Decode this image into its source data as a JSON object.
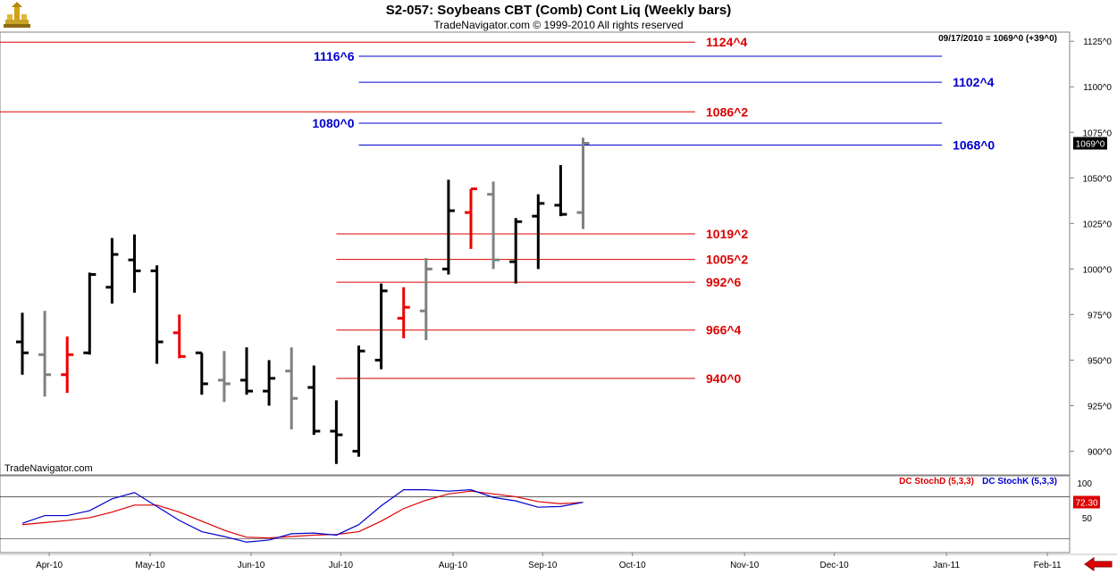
{
  "header": {
    "title": "S2-057:  Soybeans CBT (Comb) Cont Liq  (Weekly bars)",
    "copyright": "TradeNavigator.com © 1999-2010 All rights reserved"
  },
  "colors": {
    "bar_up": "#000000",
    "bar_gray": "#808080",
    "bar_red": "#ee0000",
    "red_level": "#dd0000",
    "blue_level": "#0000cc",
    "stoch_d": "#dd0000",
    "stoch_k": "#0000cc"
  },
  "icons": {
    "logo": "tradenavigator-logo-icon",
    "scroll": "scroll-left-arrow-icon"
  },
  "chart_data": [
    {
      "type": "ohlc",
      "title": "S2-057:  Soybeans CBT (Comb) Cont Liq  (Weekly bars)",
      "info_label": "09/17/2010 = 1069^0 (+39^0)",
      "watermark": "TradeNavigator.com",
      "y_range": [
        887,
        1130
      ],
      "y_ticks": [
        900,
        925,
        950,
        975,
        1000,
        1025,
        1050,
        1075,
        1100,
        1125
      ],
      "y_tick_labels": [
        "900^0",
        "925^0",
        "950^0",
        "975^0",
        "1000^0",
        "1025^0",
        "1050^0",
        "1075^0",
        "1100^0",
        "1125^0"
      ],
      "last_price_label": "1069^0",
      "last_price": 1069,
      "x_axis_labels": [
        {
          "label": "Apr-10",
          "week": 1
        },
        {
          "label": "May-10",
          "week": 5.5
        },
        {
          "label": "Jun-10",
          "week": 10
        },
        {
          "label": "Jul-10",
          "week": 14
        },
        {
          "label": "Aug-10",
          "week": 19
        },
        {
          "label": "Sep-10",
          "week": 23
        },
        {
          "label": "Oct-10",
          "week": 27
        },
        {
          "label": "Nov-10",
          "week": 32
        },
        {
          "label": "Dec-10",
          "week": 36
        },
        {
          "label": "Jan-11",
          "week": 41
        },
        {
          "label": "Feb-11",
          "week": 45.5
        }
      ],
      "bars": [
        {
          "week": 0,
          "o": 960,
          "h": 976,
          "l": 942,
          "c": 954,
          "color": "black"
        },
        {
          "week": 1,
          "o": 953,
          "h": 977,
          "l": 930,
          "c": 942,
          "color": "gray"
        },
        {
          "week": 2,
          "o": 942,
          "h": 963,
          "l": 932,
          "c": 953,
          "color": "red"
        },
        {
          "week": 3,
          "o": 954,
          "h": 998,
          "l": 953,
          "c": 997,
          "color": "black"
        },
        {
          "week": 4,
          "o": 990,
          "h": 1017,
          "l": 981,
          "c": 1008,
          "color": "black"
        },
        {
          "week": 5,
          "o": 1005,
          "h": 1019,
          "l": 987,
          "c": 999,
          "color": "black"
        },
        {
          "week": 6,
          "o": 999,
          "h": 1002,
          "l": 948,
          "c": 960,
          "color": "black"
        },
        {
          "week": 7,
          "o": 965,
          "h": 975,
          "l": 951,
          "c": 952,
          "color": "red"
        },
        {
          "week": 8,
          "o": 954,
          "h": 954,
          "l": 931,
          "c": 937,
          "color": "black"
        },
        {
          "week": 9,
          "o": 939,
          "h": 955,
          "l": 927,
          "c": 937,
          "color": "gray"
        },
        {
          "week": 10,
          "o": 939,
          "h": 957,
          "l": 931,
          "c": 933,
          "color": "black"
        },
        {
          "week": 11,
          "o": 933,
          "h": 950,
          "l": 925,
          "c": 940,
          "color": "black"
        },
        {
          "week": 12,
          "o": 944,
          "h": 957,
          "l": 912,
          "c": 929,
          "color": "gray"
        },
        {
          "week": 13,
          "o": 935,
          "h": 947,
          "l": 909,
          "c": 911,
          "color": "black"
        },
        {
          "week": 14,
          "o": 911,
          "h": 928,
          "l": 893,
          "c": 909,
          "color": "black"
        },
        {
          "week": 15,
          "o": 900,
          "h": 958,
          "l": 897,
          "c": 955,
          "color": "black"
        },
        {
          "week": 16,
          "o": 950,
          "h": 992,
          "l": 945,
          "c": 988,
          "color": "black"
        },
        {
          "week": 17,
          "o": 973,
          "h": 990,
          "l": 962,
          "c": 979,
          "color": "red"
        },
        {
          "week": 18,
          "o": 977,
          "h": 1006,
          "l": 961,
          "c": 1000,
          "color": "gray"
        },
        {
          "week": 19,
          "o": 1000,
          "h": 1049,
          "l": 997,
          "c": 1032,
          "color": "black"
        },
        {
          "week": 20,
          "o": 1031,
          "h": 1044,
          "l": 1011,
          "c": 1044,
          "color": "red"
        },
        {
          "week": 21,
          "o": 1041,
          "h": 1048,
          "l": 1000,
          "c": 1005,
          "color": "gray"
        },
        {
          "week": 22,
          "o": 1004,
          "h": 1028,
          "l": 992,
          "c": 1026,
          "color": "black"
        },
        {
          "week": 23,
          "o": 1029,
          "h": 1041,
          "l": 1000,
          "c": 1036,
          "color": "black"
        },
        {
          "week": 24,
          "o": 1035,
          "h": 1057,
          "l": 1029,
          "c": 1030,
          "color": "black"
        },
        {
          "week": 25,
          "o": 1031,
          "h": 1072,
          "l": 1022,
          "c": 1069,
          "color": "gray"
        }
      ],
      "levels": [
        {
          "label": "1124^4",
          "value": 1124.5,
          "color": "red",
          "start_week": -1,
          "end_week": 30,
          "label_side": "right"
        },
        {
          "label": "1116^6",
          "value": 1116.75,
          "color": "blue",
          "start_week": 15,
          "end_week": 41,
          "label_side": "left"
        },
        {
          "label": "1102^4",
          "value": 1102.5,
          "color": "blue",
          "start_week": 15,
          "end_week": 41,
          "label_side": "right"
        },
        {
          "label": "1086^2",
          "value": 1086.25,
          "color": "red",
          "start_week": -1,
          "end_week": 30,
          "label_side": "right"
        },
        {
          "label": "1080^0",
          "value": 1080,
          "color": "blue",
          "start_week": 15,
          "end_week": 41,
          "label_side": "left"
        },
        {
          "label": "1068^0",
          "value": 1068,
          "color": "blue",
          "start_week": 15,
          "end_week": 41,
          "label_side": "right"
        },
        {
          "label": "1019^2",
          "value": 1019.25,
          "color": "red",
          "start_week": 14,
          "end_week": 30,
          "label_side": "right"
        },
        {
          "label": "1005^2",
          "value": 1005.25,
          "color": "red",
          "start_week": 14,
          "end_week": 30,
          "label_side": "right"
        },
        {
          "label": "992^6",
          "value": 992.75,
          "color": "red",
          "start_week": 14,
          "end_week": 30,
          "label_side": "right"
        },
        {
          "label": "966^4",
          "value": 966.5,
          "color": "red",
          "start_week": 14,
          "end_week": 30,
          "label_side": "right"
        },
        {
          "label": "940^0",
          "value": 940,
          "color": "red",
          "start_week": 14,
          "end_week": 30,
          "label_side": "right"
        }
      ]
    },
    {
      "type": "line",
      "y_range": [
        0,
        110
      ],
      "y_ticks": [
        50,
        100
      ],
      "y_tick_labels": [
        "50",
        "100"
      ],
      "last_value_label": "72.30",
      "last_value": 72.3,
      "reference_lines": [
        20,
        80
      ],
      "series": [
        {
          "name": "DC StochD (5,3,3)",
          "color": "stoch_d",
          "points": [
            [
              0,
              40
            ],
            [
              1,
              43
            ],
            [
              2,
              46
            ],
            [
              3,
              50
            ],
            [
              4,
              58
            ],
            [
              5,
              68
            ],
            [
              6,
              68
            ],
            [
              7,
              58
            ],
            [
              8,
              45
            ],
            [
              9,
              32
            ],
            [
              10,
              22
            ],
            [
              11,
              21
            ],
            [
              12,
              23
            ],
            [
              13,
              25
            ],
            [
              14,
              26
            ],
            [
              15,
              30
            ],
            [
              16,
              45
            ],
            [
              17,
              63
            ],
            [
              18,
              75
            ],
            [
              19,
              84
            ],
            [
              20,
              88
            ],
            [
              21,
              84
            ],
            [
              22,
              80
            ],
            [
              23,
              73
            ],
            [
              24,
              70
            ],
            [
              25,
              72
            ]
          ]
        },
        {
          "name": "DC StochK (5,3,3)",
          "color": "stoch_k",
          "points": [
            [
              0,
              42
            ],
            [
              1,
              53
            ],
            [
              2,
              53
            ],
            [
              3,
              60
            ],
            [
              4,
              77
            ],
            [
              5,
              86
            ],
            [
              6,
              66
            ],
            [
              7,
              46
            ],
            [
              8,
              30
            ],
            [
              9,
              23
            ],
            [
              10,
              15
            ],
            [
              11,
              18
            ],
            [
              12,
              27
            ],
            [
              13,
              28
            ],
            [
              14,
              25
            ],
            [
              15,
              40
            ],
            [
              16,
              67
            ],
            [
              17,
              90
            ],
            [
              18,
              90
            ],
            [
              19,
              88
            ],
            [
              20,
              90
            ],
            [
              21,
              79
            ],
            [
              22,
              74
            ],
            [
              23,
              65
            ],
            [
              24,
              66
            ],
            [
              25,
              72
            ]
          ]
        }
      ]
    }
  ]
}
